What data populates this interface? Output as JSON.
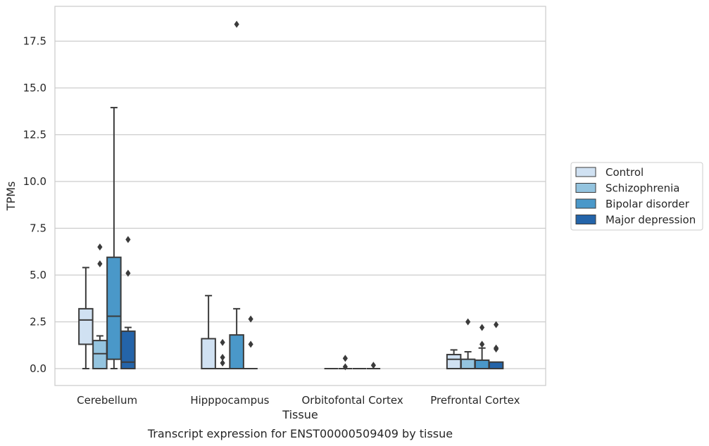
{
  "chart_data": {
    "type": "box",
    "title": "Transcript expression for ENST00000509409 by tissue",
    "xlabel": "Tissue",
    "ylabel": "TPMs",
    "ylim": [
      -0.9,
      18.8
    ],
    "yticks": [
      "0.0",
      "2.5",
      "5.0",
      "7.5",
      "10.0",
      "12.5",
      "15.0",
      "17.5"
    ],
    "ytick_values": [
      0,
      2.5,
      5,
      7.5,
      10,
      12.5,
      15,
      17.5
    ],
    "grid": "horizontal",
    "legend_position": "right",
    "categories": [
      "Cerebellum",
      "Hipppocampus",
      "Orbitofontal Cortex",
      "Prefrontal Cortex"
    ],
    "series": [
      {
        "name": "Control",
        "color": "#d0e1f2",
        "boxes": [
          {
            "q1": 1.3,
            "median": 2.6,
            "q3": 3.2,
            "whisker_low": 0,
            "whisker_high": 5.4,
            "outliers": []
          },
          {
            "q1": 0,
            "median": 0,
            "q3": 1.6,
            "whisker_low": 0,
            "whisker_high": 3.9,
            "outliers": []
          },
          {
            "q1": 0,
            "median": 0,
            "q3": 0,
            "whisker_low": 0,
            "whisker_high": 0,
            "outliers": []
          },
          {
            "q1": 0,
            "median": 0.5,
            "q3": 0.75,
            "whisker_low": 0,
            "whisker_high": 1.0,
            "outliers": []
          }
        ]
      },
      {
        "name": "Schizophrenia",
        "color": "#94c4df",
        "boxes": [
          {
            "q1": 0,
            "median": 0.8,
            "q3": 1.5,
            "whisker_low": 0,
            "whisker_high": 1.75,
            "outliers": [
              5.6,
              6.5
            ]
          },
          {
            "q1": 0,
            "median": 0,
            "q3": 0,
            "whisker_low": 0,
            "whisker_high": 0,
            "outliers": [
              0.3,
              0.6,
              1.4
            ]
          },
          {
            "q1": 0,
            "median": 0,
            "q3": 0,
            "whisker_low": 0,
            "whisker_high": 0,
            "outliers": [
              0.1,
              0.55
            ]
          },
          {
            "q1": 0,
            "median": 0,
            "q3": 0.5,
            "whisker_low": 0,
            "whisker_high": 0.9,
            "outliers": [
              2.5
            ]
          }
        ]
      },
      {
        "name": "Bipolar disorder",
        "color": "#4a98c9",
        "boxes": [
          {
            "q1": 0.5,
            "median": 2.8,
            "q3": 5.95,
            "whisker_low": 0,
            "whisker_high": 13.95,
            "outliers": []
          },
          {
            "q1": 0,
            "median": 0,
            "q3": 1.8,
            "whisker_low": 0,
            "whisker_high": 3.2,
            "outliers": [
              18.4
            ]
          },
          {
            "q1": 0,
            "median": 0,
            "q3": 0,
            "whisker_low": 0,
            "whisker_high": 0,
            "outliers": []
          },
          {
            "q1": 0,
            "median": 0,
            "q3": 0.45,
            "whisker_low": 0,
            "whisker_high": 1.1,
            "outliers": [
              1.3,
              2.2
            ]
          }
        ]
      },
      {
        "name": "Major depression",
        "color": "#2464a9",
        "boxes": [
          {
            "q1": 0,
            "median": 0.35,
            "q3": 2.0,
            "whisker_low": 0,
            "whisker_high": 2.2,
            "outliers": [
              5.1,
              6.9
            ]
          },
          {
            "q1": 0,
            "median": 0,
            "q3": 0,
            "whisker_low": 0,
            "whisker_high": 0,
            "outliers": [
              1.3,
              2.65
            ]
          },
          {
            "q1": 0,
            "median": 0,
            "q3": 0,
            "whisker_low": 0,
            "whisker_high": 0,
            "outliers": [
              0.18
            ]
          },
          {
            "q1": 0,
            "median": 0,
            "q3": 0.35,
            "whisker_low": 0,
            "whisker_high": 0.35,
            "outliers": [
              1.05,
              1.1,
              2.35
            ]
          }
        ]
      }
    ]
  }
}
